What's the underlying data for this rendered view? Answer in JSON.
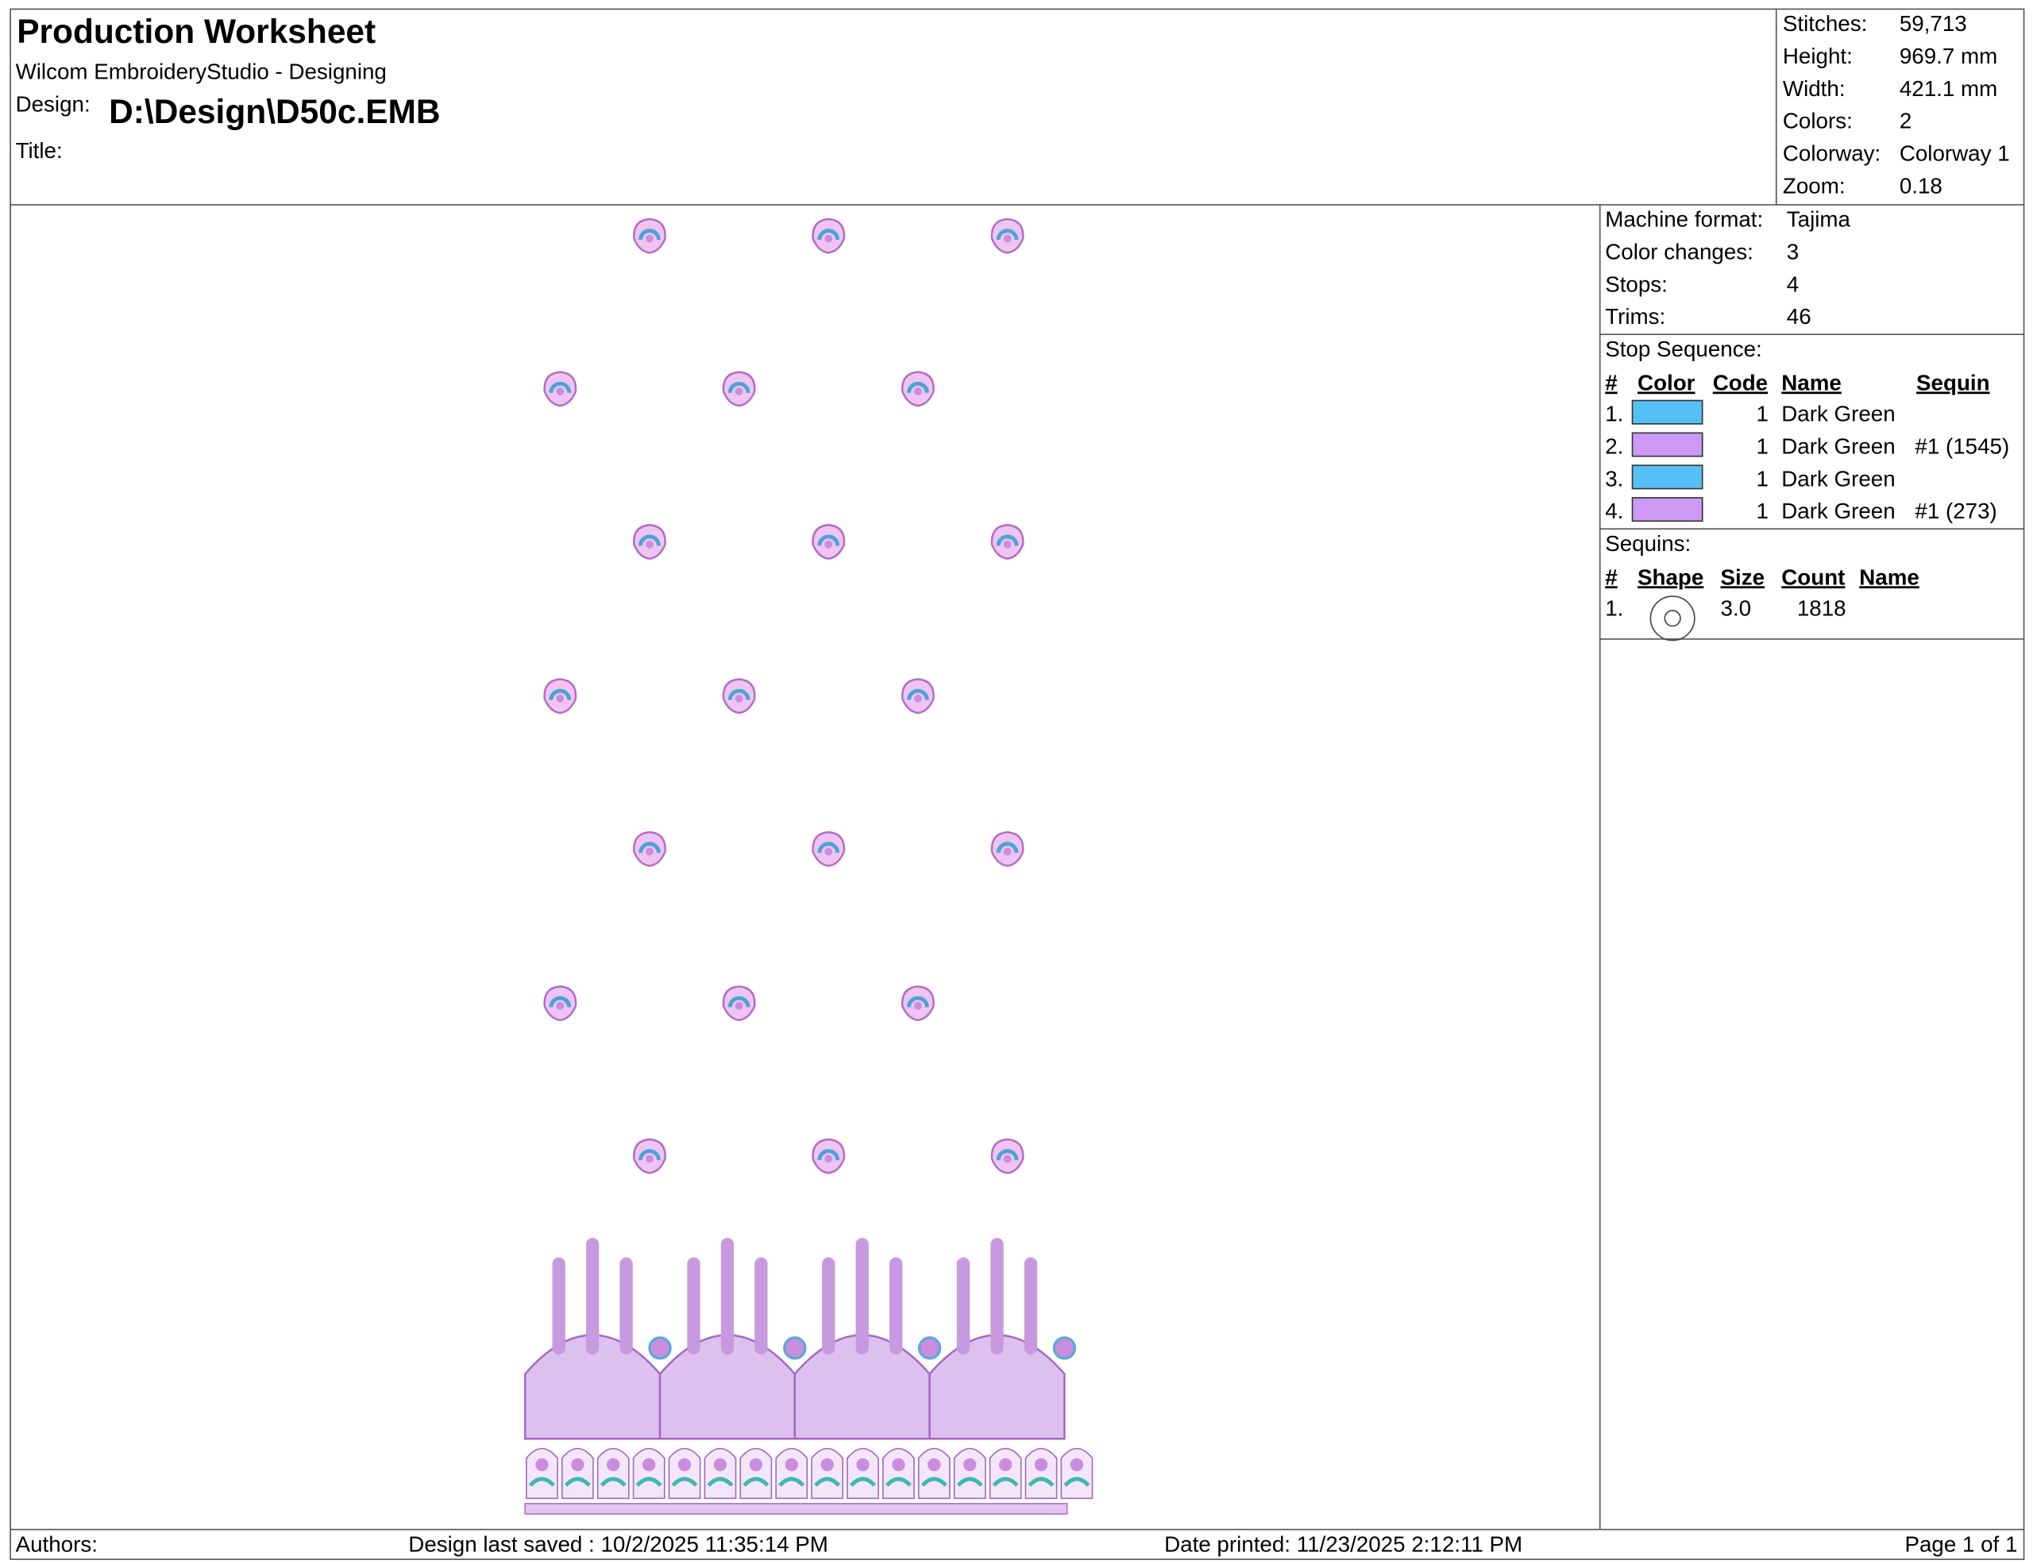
{
  "header": {
    "title": "Production Worksheet",
    "app": "Wilcom EmbroideryStudio - Designing",
    "design_label": "Design:",
    "design": "D:\\Design\\D50c.EMB",
    "title_label": "Title:"
  },
  "info": [
    [
      "Stitches:",
      "59,713"
    ],
    [
      "Height:",
      "969.7 mm"
    ],
    [
      "Width:",
      "421.1 mm"
    ],
    [
      "Colors:",
      "2"
    ],
    [
      "Colorway:",
      "Colorway 1"
    ],
    [
      "Zoom:",
      "0.18"
    ]
  ],
  "machine": [
    [
      "Machine format:",
      "Tajima"
    ],
    [
      "Color changes:",
      "3"
    ],
    [
      "Stops:",
      "4"
    ],
    [
      "Trims:",
      "46"
    ]
  ],
  "stop_sequence": {
    "heading": "Stop Sequence:",
    "columns": [
      "#",
      "Color",
      "Code",
      "Name",
      "Sequin"
    ],
    "rows": [
      {
        "num": "1.",
        "color": "#55c0f5",
        "code": "1",
        "name": "Dark Green"
      },
      {
        "num": "2.",
        "color": "#cc99f5",
        "code": "1",
        "name": "Dark Green",
        "sequin": "#1 (1545)"
      },
      {
        "num": "3.",
        "color": "#55c0f5",
        "code": "1",
        "name": "Dark Green"
      },
      {
        "num": "4.",
        "color": "#cc99f5",
        "code": "1",
        "name": "Dark Green",
        "sequin": "#1 (273)"
      }
    ]
  },
  "sequins": {
    "heading": "Sequins:",
    "columns": [
      "#",
      "Shape",
      "Size",
      "Count",
      "Name"
    ],
    "rows": [
      {
        "num": "1.",
        "size": "3.0",
        "count": "1818"
      }
    ]
  },
  "footer": {
    "authors": "Authors:",
    "saved": "Design last saved : 10/2/2025 11:35:14 PM",
    "printed": "Date printed: 11/23/2025 2:12:11 PM",
    "page": "Page 1 of 1"
  }
}
